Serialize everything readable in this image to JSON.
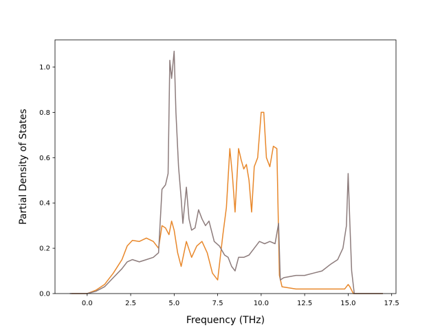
{
  "chart_data": {
    "type": "line",
    "xlabel": "Frequency (THz)",
    "ylabel": "Partial Density of States",
    "xlim": [
      -1.85,
      17.75
    ],
    "ylim": [
      0.0,
      1.12
    ],
    "xticks": [
      0.0,
      2.5,
      5.0,
      7.5,
      10.0,
      12.5,
      15.0,
      17.5
    ],
    "xtick_labels": [
      "0.0",
      "2.5",
      "5.0",
      "7.5",
      "10.0",
      "12.5",
      "15.0",
      "17.5"
    ],
    "yticks": [
      0.0,
      0.2,
      0.4,
      0.6,
      0.8,
      1.0
    ],
    "ytick_labels": [
      "0.0",
      "0.2",
      "0.4",
      "0.6",
      "0.8",
      "1.0"
    ],
    "grid": false,
    "series": [
      {
        "color": "#e8872a",
        "x": [
          -0.9,
          0.0,
          0.5,
          1.0,
          1.5,
          2.0,
          2.3,
          2.6,
          3.0,
          3.4,
          3.8,
          4.1,
          4.3,
          4.5,
          4.7,
          4.85,
          5.0,
          5.2,
          5.4,
          5.7,
          6.0,
          6.3,
          6.6,
          6.9,
          7.2,
          7.5,
          7.8,
          8.0,
          8.2,
          8.35,
          8.5,
          8.7,
          8.85,
          9.0,
          9.15,
          9.3,
          9.45,
          9.6,
          9.8,
          10.0,
          10.15,
          10.3,
          10.5,
          10.7,
          10.9,
          11.05,
          11.2,
          11.6,
          12.0,
          13.0,
          14.0,
          14.8,
          15.0,
          15.1,
          15.3,
          17.0
        ],
        "y": [
          0.0,
          0.0,
          0.015,
          0.04,
          0.09,
          0.15,
          0.21,
          0.235,
          0.23,
          0.245,
          0.23,
          0.2,
          0.3,
          0.29,
          0.26,
          0.32,
          0.28,
          0.18,
          0.12,
          0.23,
          0.16,
          0.21,
          0.23,
          0.18,
          0.09,
          0.06,
          0.26,
          0.38,
          0.64,
          0.52,
          0.36,
          0.64,
          0.59,
          0.55,
          0.57,
          0.5,
          0.36,
          0.56,
          0.6,
          0.8,
          0.8,
          0.6,
          0.56,
          0.65,
          0.64,
          0.08,
          0.03,
          0.025,
          0.02,
          0.02,
          0.02,
          0.02,
          0.04,
          0.03,
          0.0,
          0.0
        ]
      },
      {
        "color": "#8c7b7b",
        "x": [
          -1.0,
          0.0,
          0.5,
          1.0,
          1.5,
          2.0,
          2.3,
          2.6,
          3.0,
          3.4,
          3.8,
          4.1,
          4.3,
          4.5,
          4.65,
          4.75,
          4.85,
          5.0,
          5.1,
          5.25,
          5.4,
          5.5,
          5.7,
          5.85,
          6.0,
          6.2,
          6.4,
          6.6,
          6.8,
          7.0,
          7.3,
          7.6,
          7.9,
          8.1,
          8.3,
          8.5,
          8.7,
          9.0,
          9.3,
          9.6,
          9.9,
          10.2,
          10.5,
          10.8,
          11.0,
          11.1,
          11.3,
          12.0,
          12.5,
          13.0,
          13.5,
          14.0,
          14.4,
          14.7,
          14.9,
          15.0,
          15.1,
          15.2,
          15.35,
          17.0
        ],
        "y": [
          0.0,
          0.0,
          0.01,
          0.03,
          0.07,
          0.11,
          0.14,
          0.15,
          0.14,
          0.15,
          0.16,
          0.18,
          0.46,
          0.48,
          0.53,
          1.03,
          0.95,
          1.07,
          0.8,
          0.56,
          0.42,
          0.31,
          0.47,
          0.33,
          0.28,
          0.29,
          0.37,
          0.33,
          0.3,
          0.32,
          0.23,
          0.21,
          0.17,
          0.16,
          0.12,
          0.1,
          0.16,
          0.16,
          0.17,
          0.2,
          0.23,
          0.22,
          0.23,
          0.22,
          0.31,
          0.06,
          0.07,
          0.08,
          0.08,
          0.09,
          0.1,
          0.13,
          0.15,
          0.2,
          0.3,
          0.53,
          0.31,
          0.1,
          0.0,
          0.0
        ]
      }
    ]
  }
}
